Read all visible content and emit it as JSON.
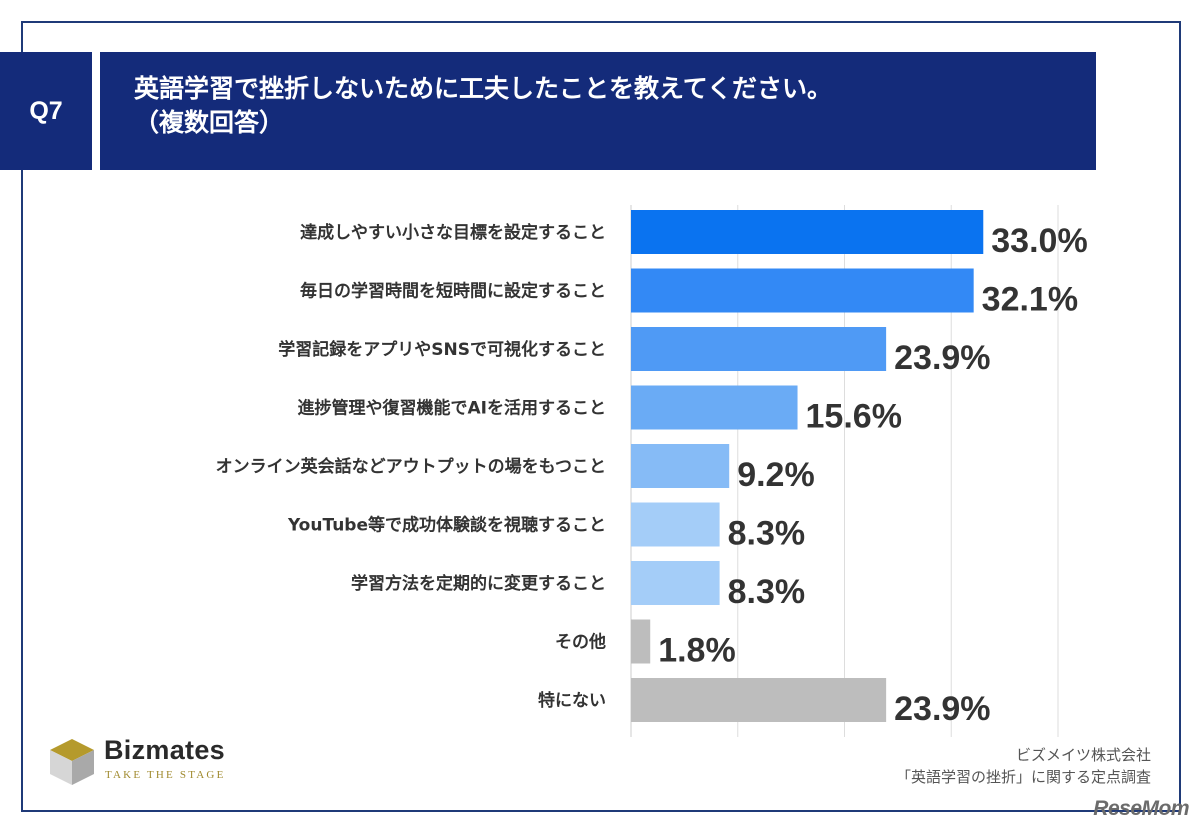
{
  "header": {
    "question_no": "Q7",
    "title_line1": "英語学習で挫折しないために工夫したことを教えてください。",
    "title_line2": "（複数回答）"
  },
  "chart_data": {
    "type": "bar",
    "orientation": "horizontal",
    "categories": [
      "達成しやすい小さな目標を設定すること",
      "毎日の学習時間を短時間に設定すること",
      "学習記録をアプリやSNSで可視化すること",
      "進捗管理や復習機能でAIを活用すること",
      "オンライン英会話などアウトプットの場をもつこと",
      "YouTube等で成功体験談を視聴すること",
      "学習方法を定期的に変更すること",
      "その他",
      "特にない"
    ],
    "values": [
      33.0,
      32.1,
      23.9,
      15.6,
      9.2,
      8.3,
      8.3,
      1.8,
      23.9
    ],
    "value_labels": [
      "33.0%",
      "32.1%",
      "23.9%",
      "15.6%",
      "9.2%",
      "8.3%",
      "8.3%",
      "1.8%",
      "23.9%"
    ],
    "bar_colors": [
      "#0a73f0",
      "#3389f5",
      "#4f9af5",
      "#6aabf5",
      "#86bbf6",
      "#a4cdf8",
      "#a4cdf8",
      "#bdbdbd",
      "#bdbdbd"
    ],
    "xlim": [
      0,
      40
    ],
    "grid": true,
    "legend": "none"
  },
  "logo": {
    "name": "Bizmates",
    "tagline": "TAKE THE STAGE",
    "colors": {
      "gold": "#b59a2c",
      "gray": "#a9a9a9"
    }
  },
  "source": {
    "line1": "ビズメイツ株式会社",
    "line2": "「英語学習の挫折」に関する定点調査"
  },
  "watermark": "ReseMom"
}
